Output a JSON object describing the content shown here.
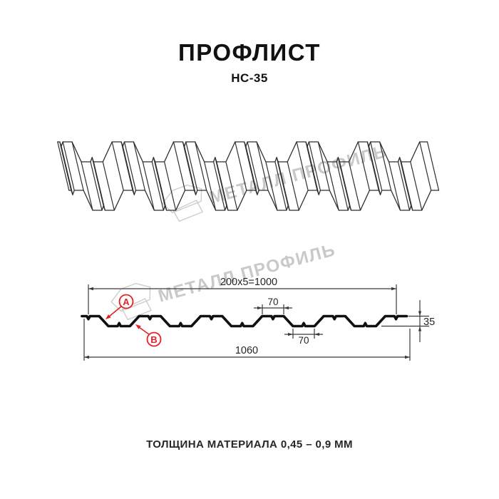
{
  "header": {
    "title": "ПРОФЛИСТ",
    "subtitle": "НС-35"
  },
  "footer": {
    "note": "ТОЛЩИНА МАТЕРИАЛА 0,45 – 0,9 ММ"
  },
  "watermark": {
    "brand": "МЕТАЛЛ ПРОФИЛЬ"
  },
  "annotations": {
    "label_a": "A",
    "label_b": "B"
  },
  "dimensions": {
    "cover_width": "200x5=1000",
    "top_flange": "70",
    "bottom_flange": "70",
    "height": "35",
    "full_width": "1060"
  },
  "colors": {
    "drawing_line": "#2e2e2e",
    "profile_line": "#101010",
    "dimension_line": "#3a3a3a",
    "accent_red": "#e32124",
    "watermark_gray": "#c9c9c9",
    "background": "#ffffff"
  },
  "profile": {
    "name": "НС-35",
    "type": "trapezoidal profiled sheet",
    "period_mm": 200,
    "crest_width_mm": 70,
    "valley_width_mm": 70,
    "height_mm": 35,
    "cover_width_mm": 1000,
    "full_width_mm": 1060,
    "thickness_range": "0,45 – 0,9 ММ"
  }
}
